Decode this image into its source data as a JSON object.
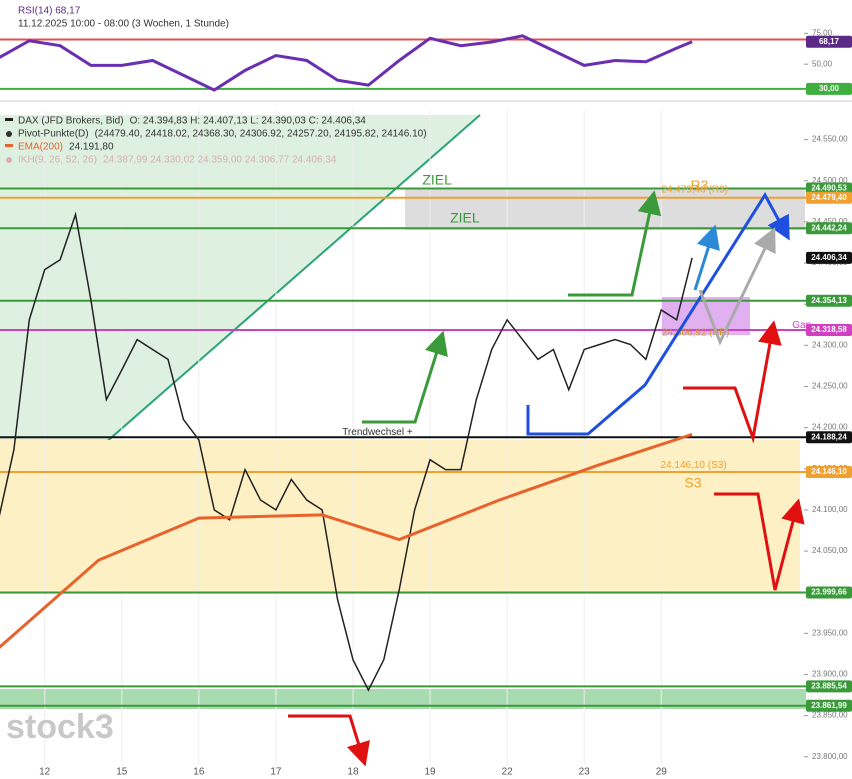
{
  "chart_data": [
    {
      "type": "line",
      "title": "RSI(14) 68,17",
      "subtitle": "11.12.2025 10:00 - 08:00 (3 Wochen, 1 Stunde)",
      "x": [
        -0.6,
        -0.2,
        0.2,
        0.6,
        1.0,
        1.4,
        1.8,
        2.2,
        2.6,
        3.0,
        3.4,
        3.8,
        4.2,
        4.6,
        5.0,
        5.4,
        5.8,
        6.2,
        6.6,
        7.0,
        7.4,
        7.8,
        8.2,
        8.4
      ],
      "series": [
        {
          "name": "RSI(14)",
          "color": "#6a2fb0",
          "values": [
            55,
            69,
            65,
            49,
            49,
            53,
            41,
            29,
            45,
            57,
            53,
            37,
            33,
            53,
            71,
            65,
            68,
            73,
            61,
            49,
            53,
            52,
            63,
            68.17
          ]
        }
      ],
      "xlim": [
        -0.58,
        9.8
      ],
      "ylim": [
        25,
        98
      ],
      "yticks": [
        {
          "value": 50,
          "label": "50,00"
        },
        {
          "value": 75,
          "label": "75,00"
        }
      ],
      "levels": [
        {
          "value": 70,
          "color": "#e05050",
          "line": true
        },
        {
          "value": 68.17,
          "label": "68,17",
          "color": "#5b2a86",
          "line": false
        },
        {
          "value": 30,
          "label": "30,00",
          "color": "#3fae3f",
          "line": true
        }
      ]
    },
    {
      "type": "line",
      "x": [
        -0.6,
        -0.4,
        -0.2,
        0.0,
        0.2,
        0.4,
        0.6,
        0.8,
        1.0,
        1.2,
        1.4,
        1.6,
        1.8,
        2.0,
        2.2,
        2.4,
        2.6,
        2.8,
        3.0,
        3.2,
        3.4,
        3.6,
        3.8,
        4.0,
        4.2,
        4.4,
        4.6,
        4.8,
        5.0,
        5.2,
        5.4,
        5.6,
        5.8,
        6.0,
        6.2,
        6.4,
        6.6,
        6.8,
        7.0,
        7.2,
        7.4,
        7.6,
        7.8,
        8.0,
        8.2,
        8.4
      ],
      "series": [
        {
          "name": "DAX (JFD Brokers, Bid)",
          "info": "O: 24.394,83  H: 24.407,13  L: 24.390,03  C: 24.406,34",
          "color": "#222222",
          "values": [
            24088,
            24173,
            24331,
            24392,
            24404,
            24459,
            24355,
            24234,
            24270,
            24307,
            24295,
            24283,
            24210,
            24185,
            24100,
            24088,
            24149,
            24112,
            24100,
            24137,
            24112,
            24100,
            23991,
            23918,
            23881,
            23918,
            24003,
            24100,
            24161,
            24149,
            24149,
            24234,
            24295,
            24331,
            24307,
            24283,
            24295,
            24246,
            24295,
            24301,
            24307,
            24301,
            24283,
            24343,
            24331,
            24406.34
          ]
        },
        {
          "name": "EMA(200)",
          "info": "24.191,80",
          "color": "#e8622c",
          "x": [
            -0.6,
            0.7,
            2.0,
            3.6,
            4.6,
            5.9,
            7.2,
            8.4
          ],
          "values": [
            23932,
            24039,
            24090,
            24094,
            24064,
            24112,
            24155,
            24191.8
          ]
        }
      ],
      "legend_extra": [
        {
          "name": "Pivot-Punkte(D)",
          "info": "(24479.40, 24418.02, 24368.30, 24306.92, 24257.20, 24195.82, 24146.10)",
          "color": "#333333"
        },
        {
          "name": "IKH(9, 26, 52, 26)",
          "info": "24.387,99  24.330,02  24.359,00  24.306,77  24.406,34",
          "color": "#d8b0b0"
        }
      ],
      "xlim": [
        -0.58,
        9.8
      ],
      "ylim": [
        23790,
        24586
      ],
      "xticks": [
        {
          "value": 0,
          "label": "12"
        },
        {
          "value": 1,
          "label": "15"
        },
        {
          "value": 2,
          "label": "16"
        },
        {
          "value": 3,
          "label": "17"
        },
        {
          "value": 4,
          "label": "18"
        },
        {
          "value": 5,
          "label": "19"
        },
        {
          "value": 6,
          "label": "22"
        },
        {
          "value": 7,
          "label": "23"
        },
        {
          "value": 8,
          "label": "29"
        }
      ],
      "yticks": [
        {
          "value": 23800,
          "label": "23.800,00"
        },
        {
          "value": 23850,
          "label": "23.850,00"
        },
        {
          "value": 23900,
          "label": "23.900,00"
        },
        {
          "value": 23950,
          "label": "23.950,00"
        },
        {
          "value": 24000,
          "label": "24.000,00"
        },
        {
          "value": 24050,
          "label": "24.050,00"
        },
        {
          "value": 24100,
          "label": "24.100,00"
        },
        {
          "value": 24150,
          "label": "24.150,00"
        },
        {
          "value": 24200,
          "label": "24.200,00"
        },
        {
          "value": 24250,
          "label": "24.250,00"
        },
        {
          "value": 24300,
          "label": "24.300,00"
        },
        {
          "value": 24350,
          "label": "24.350,00"
        },
        {
          "value": 24400,
          "label": "24.400,00"
        },
        {
          "value": 24450,
          "label": "24.450,00"
        },
        {
          "value": 24500,
          "label": "24.500,00"
        },
        {
          "value": 24550,
          "label": "24.550,00"
        }
      ],
      "levels": [
        {
          "value": 24490.53,
          "label": "24.490,53",
          "color": "#3a9a3a",
          "line": true
        },
        {
          "value": 24479.4,
          "label": "24.479,40",
          "color": "#f0a030",
          "line": true
        },
        {
          "value": 24442.24,
          "label": "24.442,24",
          "color": "#3a9a3a",
          "line": true
        },
        {
          "value": 24406.34,
          "label": "24.406,34",
          "color": "#111111",
          "line": false
        },
        {
          "value": 24354.13,
          "label": "24.354,13",
          "color": "#3a9a3a",
          "line": true
        },
        {
          "value": 24318.58,
          "label": "24.318,58",
          "color": "#d040c0",
          "line": true
        },
        {
          "value": 24188.24,
          "label": "24.188,24",
          "color": "#111111",
          "line": true
        },
        {
          "value": 24146.1,
          "label": "24.146,10",
          "color": "#f0a030",
          "line": true
        },
        {
          "value": 23999.66,
          "label": "23.999,66",
          "color": "#3a9a3a",
          "line": true
        },
        {
          "value": 23885.54,
          "label": "23.885,54",
          "color": "#3a9a3a",
          "line": true
        },
        {
          "value": 23861.99,
          "label": "23.861,99",
          "color": "#3a9a3a",
          "line": true
        }
      ],
      "annotations": [
        {
          "text": "ZIEL",
          "x": 4.9,
          "y": 24500,
          "color": "#3a9a3a",
          "size": 14
        },
        {
          "text": "ZIEL",
          "x": 5.26,
          "y": 24454,
          "color": "#3a9a3a",
          "size": 14
        },
        {
          "text": "Trendwechsel +",
          "x": 3.86,
          "y": 24194,
          "color": "#333333",
          "size": 10
        },
        {
          "text": "Gap",
          "x": 9.7,
          "y": 24324,
          "color": "#d040c0",
          "size": 10
        },
        {
          "text": "24.479,40 (R3)",
          "x": 8.0,
          "y": 24489,
          "color": "#f0a030",
          "size": 10
        },
        {
          "text": "R3",
          "x": 8.38,
          "y": 24493,
          "color": "#f0a030",
          "size": 14
        },
        {
          "text": "24.306,92 (PP)",
          "x": 8.01,
          "y": 24315,
          "color": "#c8a020",
          "size": 10
        },
        {
          "text": "24.146,10 (S3)",
          "x": 7.99,
          "y": 24154,
          "color": "#f0a030",
          "size": 10
        },
        {
          "text": "S3",
          "x": 8.3,
          "y": 24132,
          "color": "#f0a030",
          "size": 14
        }
      ],
      "watermark": "stock3"
    }
  ]
}
